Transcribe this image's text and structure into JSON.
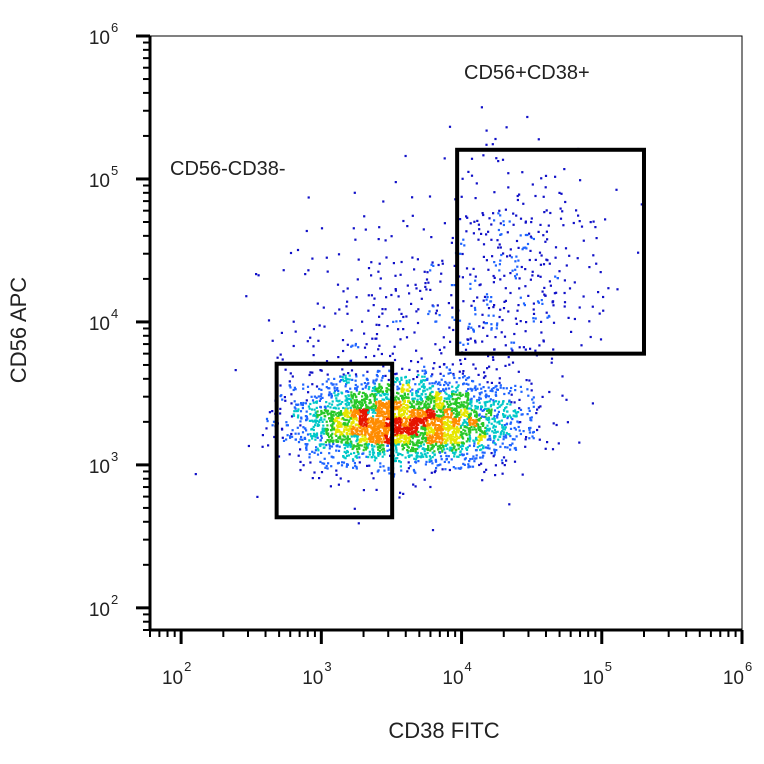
{
  "chart_data": {
    "type": "scatter",
    "subtype": "flow-cytometry density dot plot",
    "xlabel": "CD38 FITC",
    "ylabel": "CD56 APC",
    "x_scale": "log",
    "y_scale": "log",
    "xlim": [
      60,
      1000000
    ],
    "ylim": [
      70,
      1000000
    ],
    "x_ticks": [
      {
        "value": 100,
        "base": "10",
        "exp": "2"
      },
      {
        "value": 1000,
        "base": "10",
        "exp": "3"
      },
      {
        "value": 10000,
        "base": "10",
        "exp": "4"
      },
      {
        "value": 100000,
        "base": "10",
        "exp": "5"
      },
      {
        "value": 1000000,
        "base": "10",
        "exp": "6"
      }
    ],
    "y_ticks": [
      {
        "value": 100,
        "base": "10",
        "exp": "2"
      },
      {
        "value": 1000,
        "base": "10",
        "exp": "3"
      },
      {
        "value": 10000,
        "base": "10",
        "exp": "4"
      },
      {
        "value": 100000,
        "base": "10",
        "exp": "5"
      },
      {
        "value": 1000000,
        "base": "10",
        "exp": "6"
      }
    ],
    "gates": [
      {
        "label": "CD56-CD38-",
        "x_range": [
          480,
          3200
        ],
        "y_range": [
          430,
          5100
        ]
      },
      {
        "label": "CD56+CD38+",
        "x_range": [
          9300,
          200000
        ],
        "y_range": [
          6000,
          160000
        ]
      }
    ],
    "populations": [
      {
        "center_x": 2000,
        "center_y": 2000,
        "density": "high"
      },
      {
        "center_x": 6500,
        "center_y": 2000,
        "density": "high"
      },
      {
        "center_x": 25000,
        "center_y": 22000,
        "density": "low"
      }
    ],
    "color_scale": [
      "#1010c8",
      "#1e64ff",
      "#00c8c8",
      "#28c828",
      "#e6e600",
      "#ff8c00",
      "#e61400"
    ],
    "grid": false,
    "legend": "none"
  }
}
